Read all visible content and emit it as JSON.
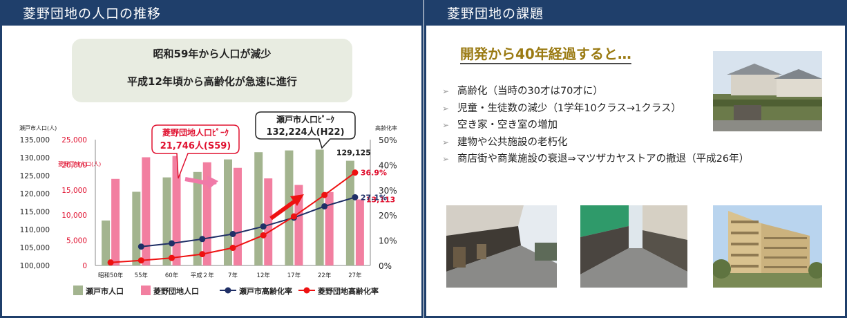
{
  "left_panel": {
    "title": "菱野団地の人口の推移"
  },
  "right_panel": {
    "title": "菱野団地の課題"
  },
  "summary": {
    "line1": "昭和59年から人口が減少",
    "line2": "平成12年頃から高齢化が急速に進行"
  },
  "issues": {
    "heading": "開発から40年経過すると…",
    "items": [
      "高齢化（当時の30才は70才に）",
      "児童・生徒数の減少（1学年10クラス→1クラス）",
      "空き家・空き室の増加",
      "建物や公共施設の老朽化",
      "商店街や商業施設の衰退⇒マツザカヤストアの撤退（平成26年）"
    ]
  },
  "chart_data": {
    "type": "bar",
    "categories": [
      "昭和50年",
      "55年",
      "60年",
      "平成２年",
      "7年",
      "12年",
      "17年",
      "22年",
      "27年"
    ],
    "series": [
      {
        "name": "瀬戸市人口",
        "type": "bar",
        "axis": "left_outer",
        "values": [
          112500,
          120500,
          124500,
          126000,
          129500,
          131500,
          132000,
          132224,
          129125
        ],
        "color": "#a3b48f"
      },
      {
        "name": "菱野団地人口",
        "type": "bar",
        "axis": "left_inner",
        "values": [
          17200,
          21500,
          21746,
          20500,
          19400,
          17300,
          16000,
          14600,
          13113
        ],
        "color": "#f27fa0"
      },
      {
        "name": "瀬戸市高齢化率",
        "type": "line",
        "axis": "right",
        "values": [
          null,
          7.5,
          8.8,
          10.5,
          12.5,
          15.5,
          19,
          23.5,
          27.1
        ],
        "color": "#1f2f66"
      },
      {
        "name": "菱野団地高齢化率",
        "type": "line",
        "axis": "right",
        "values": [
          1.2,
          2.0,
          3.0,
          4.5,
          7.0,
          12.0,
          19.5,
          28.0,
          36.9
        ],
        "color": "#ee1111"
      }
    ],
    "y_left_outer": {
      "label": "瀬戸市人口(人)",
      "range": [
        100000,
        135000
      ],
      "ticks": [
        "100,000",
        "105,000",
        "110,000",
        "115,000",
        "120,000",
        "125,000",
        "130,000",
        "135,000"
      ]
    },
    "y_left_inner": {
      "label": "菱野団地人口(人)",
      "range": [
        0,
        25000
      ],
      "ticks": [
        "0",
        "5,000",
        "10,000",
        "15,000",
        "20,000",
        "25,000"
      ]
    },
    "y_right": {
      "label": "高齢化率",
      "range": [
        0,
        50
      ],
      "ticks": [
        "0%",
        "10%",
        "20%",
        "30%",
        "40%",
        "50%"
      ]
    },
    "annotations": {
      "hishino_peak_1": "菱野団地人口ﾋﾟｰｸ",
      "hishino_peak_2": "21,746人(S59)",
      "seto_peak_1": "瀬戸市人口ﾋﾟｰｸ",
      "seto_peak_2": "132,224人(H22)",
      "seto_last_pop": "129,125",
      "hishino_last_pop": "13,113",
      "seto_last_rate": "27.1%",
      "hishino_last_rate": "36.9%"
    },
    "legend_position": "bottom",
    "grid": false
  },
  "photos": [
    {
      "name": "houses-photo",
      "sky": "#d8e3ee",
      "ground": "#6b7a4a"
    },
    {
      "name": "street-photo-1",
      "sky": "#e6ebf0",
      "ground": "#8a8a88"
    },
    {
      "name": "arcade-photo",
      "sky": "#dfe7ec",
      "ground": "#8c8c8a"
    },
    {
      "name": "apartment-photo",
      "sky": "#b9d4ee",
      "ground": "#7a8a55"
    }
  ]
}
